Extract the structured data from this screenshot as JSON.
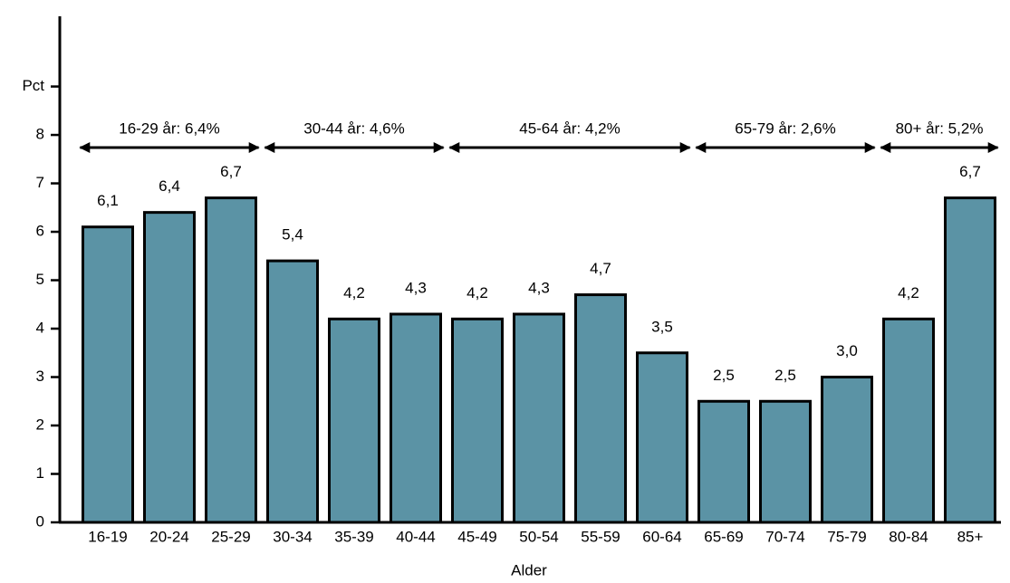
{
  "chart_data": {
    "type": "bar",
    "x_label": "Alder",
    "categories": [
      "16-19",
      "20-24",
      "25-29",
      "30-34",
      "35-39",
      "40-44",
      "45-49",
      "50-54",
      "55-59",
      "60-64",
      "65-69",
      "70-74",
      "75-79",
      "80-84",
      "85+"
    ],
    "values": [
      6.1,
      6.4,
      6.7,
      5.4,
      4.2,
      4.3,
      4.2,
      4.3,
      4.7,
      3.5,
      2.5,
      2.5,
      3.0,
      4.2,
      6.7
    ],
    "value_labels": [
      "6,1",
      "6,4",
      "6,7",
      "5,4",
      "4,2",
      "4,3",
      "4,2",
      "4,3",
      "4,7",
      "3,5",
      "2,5",
      "2,5",
      "3,0",
      "4,2",
      "6,7"
    ],
    "color": "#5b93a5",
    "ylim": [
      0,
      10.45
    ],
    "yticks": [
      0,
      1,
      2,
      3,
      4,
      5,
      6,
      7,
      8,
      {
        "value": 9,
        "label": "Pct"
      }
    ],
    "annotations": [
      "16-29 år: 6,4%",
      "30-44 år: 4,6%",
      "45-64 år: 4,2%",
      "65-79 år: 2,6%",
      "80+ år: 5,2%"
    ]
  }
}
